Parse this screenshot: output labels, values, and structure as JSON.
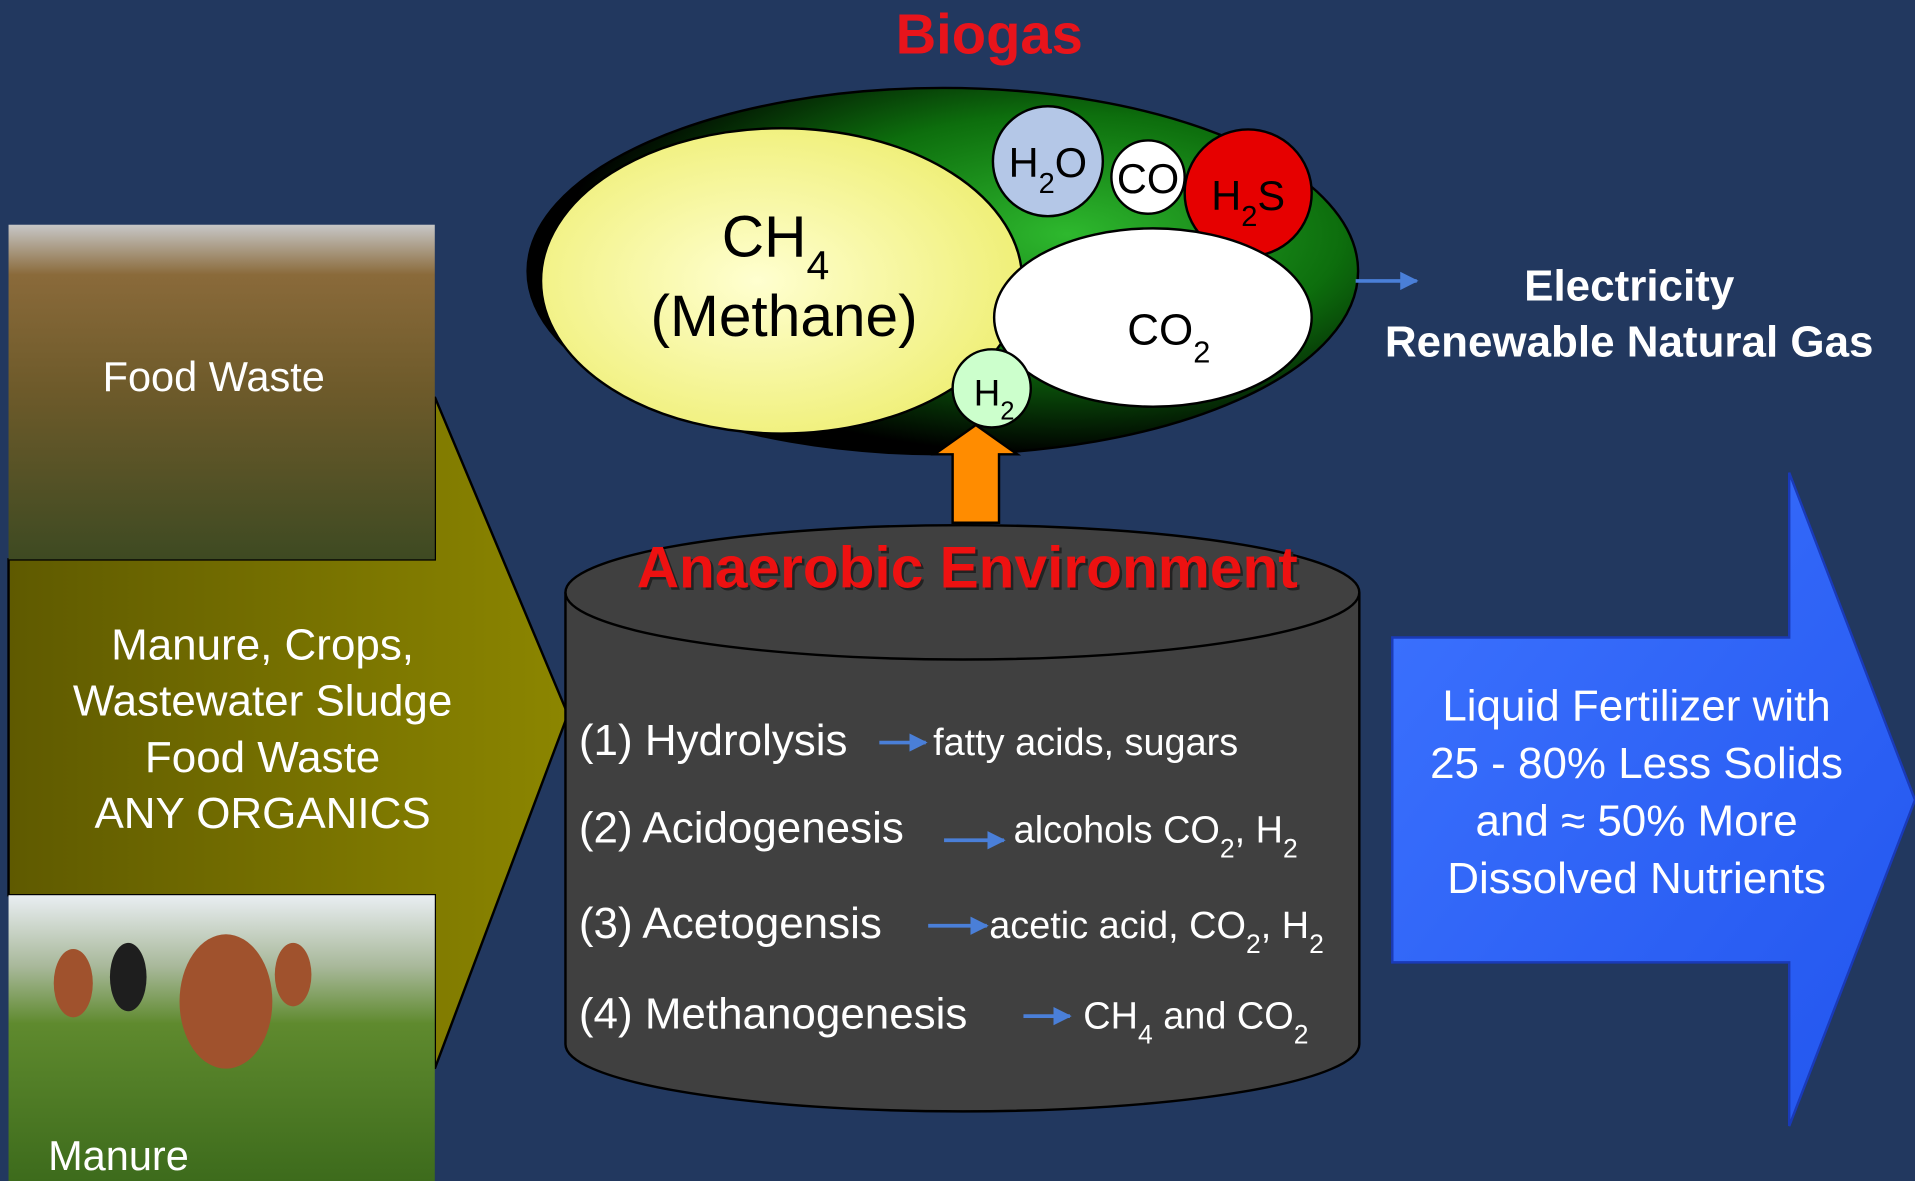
{
  "title": "Biogas",
  "gases": [
    {
      "formula": [
        "CH",
        {
          "sub": "4"
        }
      ],
      "label": "(Methane)"
    },
    {
      "formula": [
        "H",
        {
          "sub": "2"
        },
        "O"
      ]
    },
    {
      "formula": [
        "CO"
      ]
    },
    {
      "formula": [
        "H",
        {
          "sub": "2"
        },
        "S"
      ]
    },
    {
      "formula": [
        "CO",
        {
          "sub": "2"
        }
      ]
    },
    {
      "formula": [
        "H",
        {
          "sub": "2"
        }
      ]
    }
  ],
  "outputs": [
    "Electricity",
    "Renewable Natural Gas"
  ],
  "photos": [
    "Food Waste",
    "Manure"
  ],
  "feedstock": [
    "Manure, Crops,",
    "Wastewater Sludge",
    "Food Waste",
    "ANY ORGANICS"
  ],
  "digester": {
    "title": "Anaerobic Environment",
    "steps": [
      {
        "stage": "(1) Hydrolysis",
        "products": [
          "fatty acids, sugars"
        ]
      },
      {
        "stage": "(2) Acidogenesis",
        "products": [
          "alcohols CO",
          {
            "sub": "2"
          },
          ", H",
          {
            "sub": "2"
          }
        ]
      },
      {
        "stage": "(3) Acetogensis",
        "products": [
          "acetic acid, CO",
          {
            "sub": "2"
          },
          ", H",
          {
            "sub": "2"
          }
        ]
      },
      {
        "stage": "(4) Methanogenesis",
        "products": [
          "CH",
          {
            "sub": "4"
          },
          " and CO",
          {
            "sub": "2"
          }
        ]
      }
    ]
  },
  "fertilizer": [
    "Liquid Fertilizer with",
    "25 - 80% Less Solids",
    "and ≈ 50% More",
    "Dissolved Nutrients"
  ]
}
